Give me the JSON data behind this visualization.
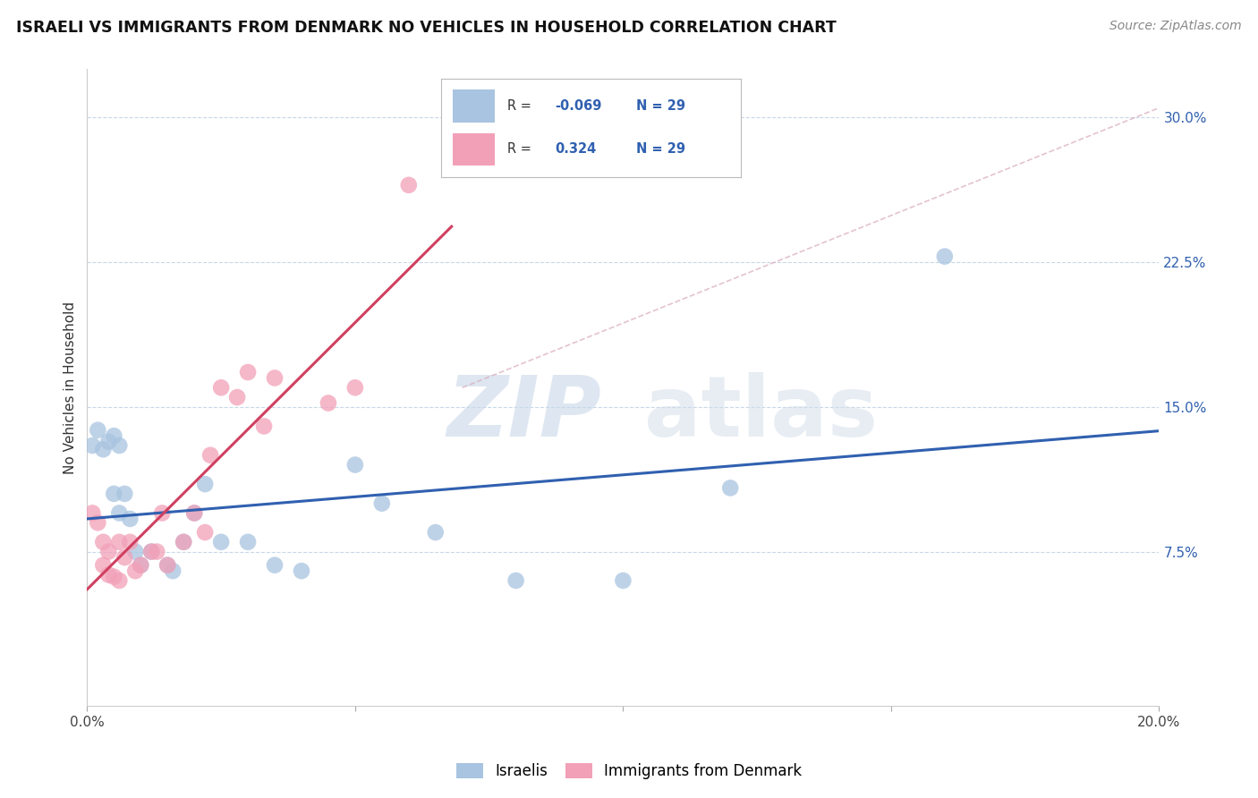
{
  "title": "ISRAELI VS IMMIGRANTS FROM DENMARK NO VEHICLES IN HOUSEHOLD CORRELATION CHART",
  "source": "Source: ZipAtlas.com",
  "ylabel": "No Vehicles in Household",
  "ytick_labels": [
    "7.5%",
    "15.0%",
    "22.5%",
    "30.0%"
  ],
  "ytick_values": [
    0.075,
    0.15,
    0.225,
    0.3
  ],
  "xlim": [
    0.0,
    0.2
  ],
  "ylim": [
    -0.005,
    0.325
  ],
  "legend_labels": [
    "Israelis",
    "Immigrants from Denmark"
  ],
  "R_israeli": -0.069,
  "R_denmark": 0.324,
  "N_israeli": 29,
  "N_denmark": 29,
  "israeli_color": "#a8c4e0",
  "denmark_color": "#f2a0b8",
  "israeli_line_color": "#3060b0",
  "denmark_line_color": "#d04060",
  "watermark_zip": "ZIP",
  "watermark_atlas": "atlas",
  "background_color": "#ffffff",
  "grid_color": "#c8d8e8",
  "israeli_scatter_x": [
    0.001,
    0.002,
    0.003,
    0.004,
    0.005,
    0.005,
    0.006,
    0.006,
    0.007,
    0.008,
    0.009,
    0.01,
    0.012,
    0.015,
    0.016,
    0.018,
    0.02,
    0.022,
    0.025,
    0.03,
    0.035,
    0.04,
    0.05,
    0.055,
    0.065,
    0.08,
    0.1,
    0.12,
    0.16
  ],
  "israeli_scatter_y": [
    0.13,
    0.138,
    0.128,
    0.132,
    0.135,
    0.105,
    0.13,
    0.095,
    0.105,
    0.092,
    0.075,
    0.068,
    0.075,
    0.068,
    0.065,
    0.08,
    0.095,
    0.11,
    0.08,
    0.08,
    0.068,
    0.065,
    0.12,
    0.1,
    0.085,
    0.06,
    0.06,
    0.108,
    0.228
  ],
  "denmark_scatter_x": [
    0.001,
    0.002,
    0.003,
    0.003,
    0.004,
    0.004,
    0.005,
    0.006,
    0.006,
    0.007,
    0.008,
    0.009,
    0.01,
    0.012,
    0.013,
    0.014,
    0.015,
    0.018,
    0.02,
    0.022,
    0.023,
    0.025,
    0.028,
    0.03,
    0.033,
    0.035,
    0.045,
    0.05,
    0.06
  ],
  "denmark_scatter_y": [
    0.095,
    0.09,
    0.08,
    0.068,
    0.075,
    0.063,
    0.062,
    0.06,
    0.08,
    0.072,
    0.08,
    0.065,
    0.068,
    0.075,
    0.075,
    0.095,
    0.068,
    0.08,
    0.095,
    0.085,
    0.125,
    0.16,
    0.155,
    0.168,
    0.14,
    0.165,
    0.152,
    0.16,
    0.265
  ],
  "dash_line_x": [
    0.07,
    0.2
  ],
  "dash_line_y": [
    0.16,
    0.305
  ]
}
